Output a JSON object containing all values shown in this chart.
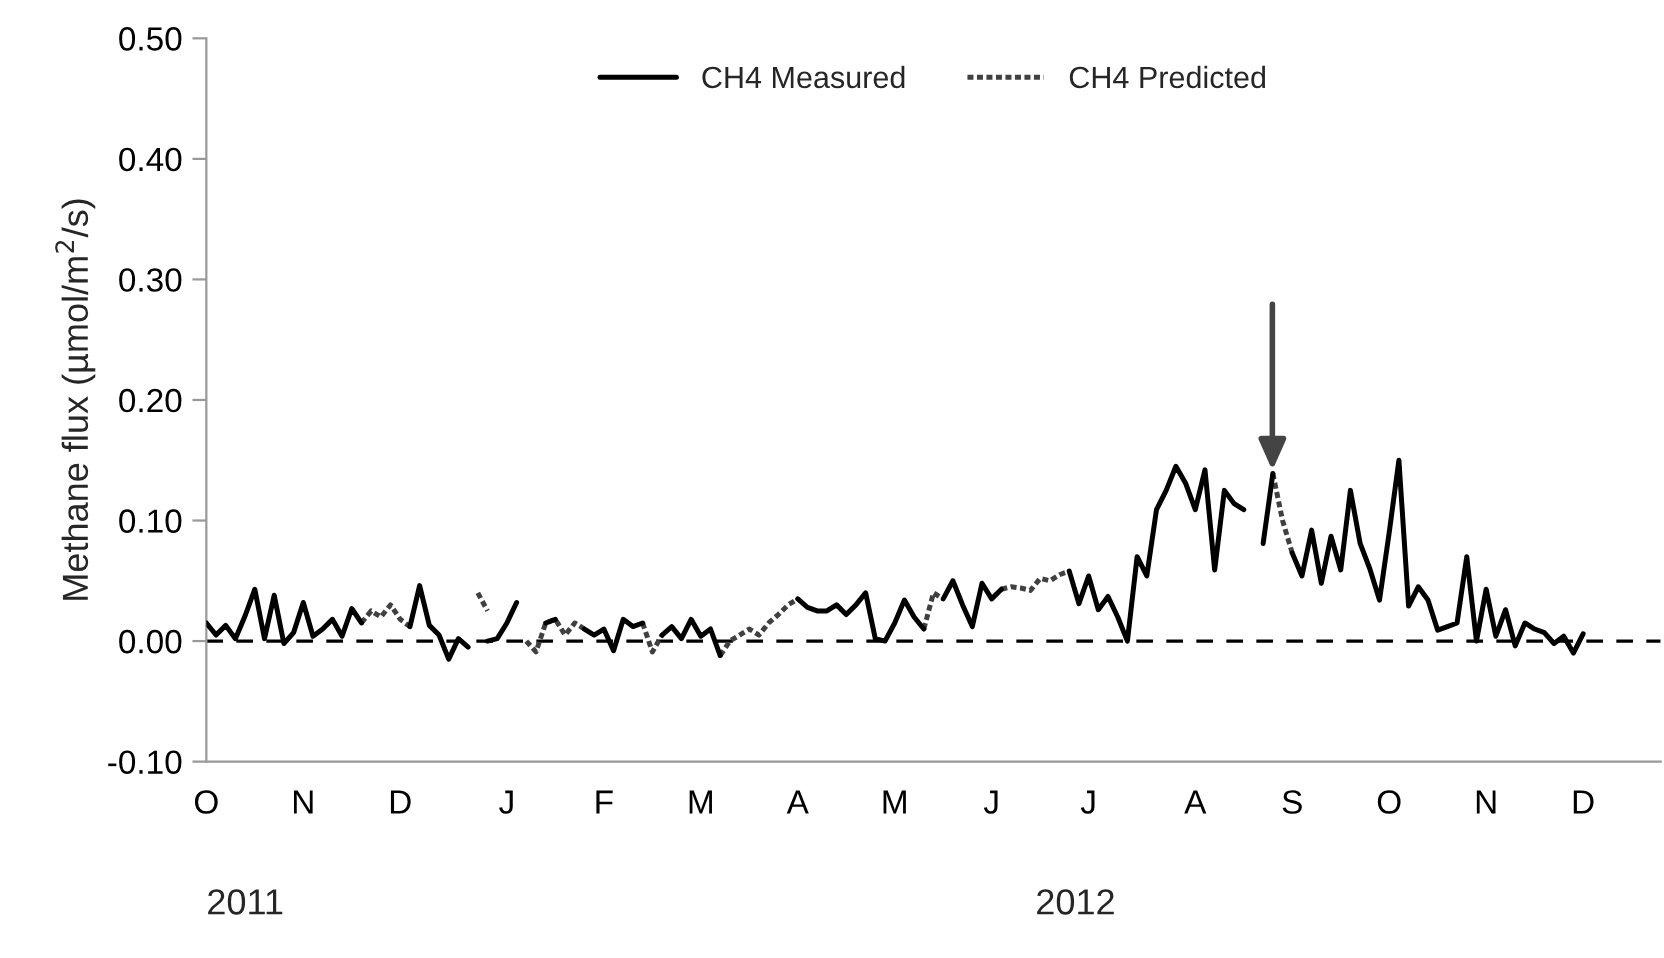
{
  "chart_data": {
    "type": "line",
    "ylabel": "Methane flux (µmol/m$^{2}$/s)",
    "categories": [
      "O",
      null,
      null,
      null,
      null,
      null,
      null,
      null,
      null,
      null,
      "N",
      null,
      null,
      null,
      null,
      null,
      null,
      null,
      null,
      null,
      "D",
      null,
      null,
      null,
      null,
      null,
      null,
      null,
      null,
      null,
      null,
      "J",
      null,
      null,
      null,
      null,
      null,
      null,
      null,
      null,
      null,
      "F",
      null,
      null,
      null,
      null,
      null,
      null,
      null,
      null,
      null,
      "M",
      null,
      null,
      null,
      null,
      null,
      null,
      null,
      null,
      null,
      "A",
      null,
      null,
      null,
      null,
      null,
      null,
      null,
      null,
      null,
      "M",
      null,
      null,
      null,
      null,
      null,
      null,
      null,
      null,
      null,
      "J",
      null,
      null,
      null,
      null,
      null,
      null,
      null,
      null,
      null,
      "J",
      null,
      null,
      null,
      null,
      null,
      null,
      null,
      null,
      null,
      null,
      "A",
      null,
      null,
      null,
      null,
      null,
      null,
      null,
      null,
      null,
      "S",
      null,
      null,
      null,
      null,
      null,
      null,
      null,
      null,
      null,
      "O",
      null,
      null,
      null,
      null,
      null,
      null,
      null,
      null,
      null,
      "N",
      null,
      null,
      null,
      null,
      null,
      null,
      null,
      null,
      null,
      "D",
      null,
      null,
      null,
      null,
      null,
      null,
      null
    ],
    "ylim": [
      -0.1,
      0.5
    ],
    "yticks": [
      {
        "value": -0.1,
        "label": "-0.10"
      },
      {
        "value": 0.0,
        "label": "0.00"
      },
      {
        "value": 0.1,
        "label": "0.10"
      },
      {
        "value": 0.2,
        "label": "0.20"
      },
      {
        "value": 0.3,
        "label": "0.30"
      },
      {
        "value": 0.4,
        "label": "0.40"
      },
      {
        "value": 0.5,
        "label": "0.50"
      }
    ],
    "grid": false,
    "legend": "top",
    "marker": "none",
    "ref_lines": [
      {
        "axis": "y",
        "value": 0,
        "color": "#000000",
        "line_style": "dashed"
      }
    ],
    "annotations": [
      "2011",
      "2012"
    ],
    "series": [
      {
        "name": "CH4 Measured",
        "color": "#000000",
        "line_style": "solid",
        "values": [
          0.015,
          0.005,
          0.013,
          0.002,
          0.021,
          0.043,
          0.002,
          0.038,
          -0.002,
          0.007,
          0.032,
          0.004,
          0.01,
          0.018,
          0.004,
          0.027,
          0.015,
          null,
          null,
          null,
          null,
          0.012,
          0.046,
          0.013,
          0.005,
          -0.015,
          0.002,
          -0.005,
          null,
          0.0,
          0.002,
          0.015,
          0.032,
          null,
          null,
          0.015,
          0.018,
          null,
          null,
          0.01,
          0.005,
          0.01,
          -0.008,
          0.018,
          0.012,
          0.015,
          null,
          0.005,
          0.012,
          0.002,
          0.018,
          0.004,
          0.01,
          -0.012,
          null,
          null,
          null,
          null,
          null,
          null,
          null,
          0.035,
          0.028,
          0.025,
          0.025,
          0.03,
          0.022,
          0.03,
          0.04,
          0.002,
          0.0,
          0.015,
          0.034,
          0.02,
          0.01,
          null,
          0.035,
          0.05,
          0.03,
          0.012,
          0.048,
          0.035,
          0.043,
          null,
          null,
          null,
          null,
          null,
          null,
          0.058,
          0.031,
          0.054,
          0.026,
          0.037,
          0.02,
          0.0,
          0.07,
          0.054,
          0.109,
          0.125,
          0.145,
          0.131,
          0.109,
          0.142,
          0.059,
          0.125,
          0.114,
          0.109,
          null,
          0.081,
          0.139,
          null,
          0.073,
          0.054,
          0.092,
          0.048,
          0.087,
          0.059,
          0.125,
          0.081,
          0.06,
          0.034,
          0.09,
          0.15,
          0.029,
          0.045,
          0.034,
          0.009,
          0.012,
          0.015,
          0.07,
          0.0,
          0.043,
          0.004,
          0.026,
          -0.004,
          0.015,
          0.01,
          0.007,
          -0.002,
          0.004,
          -0.01,
          0.006,
          null,
          null,
          null,
          null,
          null,
          null,
          null
        ]
      },
      {
        "name": "CH4 Predicted",
        "color": "#404040",
        "line_style": "dotted",
        "values": [
          null,
          null,
          null,
          null,
          null,
          null,
          null,
          null,
          null,
          null,
          null,
          null,
          null,
          null,
          null,
          null,
          0.015,
          0.025,
          0.02,
          0.03,
          0.018,
          0.012,
          null,
          null,
          null,
          null,
          null,
          null,
          0.04,
          0.025,
          null,
          null,
          null,
          0.0,
          -0.009,
          0.015,
          0.018,
          0.005,
          0.015,
          0.01,
          null,
          null,
          null,
          null,
          null,
          0.015,
          -0.009,
          0.005,
          null,
          null,
          null,
          null,
          null,
          -0.012,
          0.0,
          0.005,
          0.01,
          0.005,
          0.015,
          0.022,
          0.03,
          0.035,
          null,
          null,
          null,
          null,
          null,
          null,
          null,
          null,
          null,
          null,
          null,
          null,
          0.01,
          0.04,
          0.035,
          null,
          null,
          null,
          null,
          null,
          0.043,
          0.045,
          0.044,
          0.042,
          0.052,
          0.05,
          0.055,
          0.058,
          null,
          null,
          null,
          null,
          null,
          null,
          null,
          null,
          null,
          null,
          null,
          null,
          null,
          null,
          null,
          null,
          null,
          null,
          null,
          null,
          0.139,
          0.1,
          0.073,
          null,
          null,
          null,
          null,
          null,
          null,
          null,
          null,
          null,
          null,
          null,
          null,
          null,
          null,
          null,
          null,
          null,
          null,
          null,
          null,
          null,
          null,
          null,
          null,
          null,
          null,
          null,
          null,
          null,
          null,
          null,
          null,
          null,
          null,
          null,
          null,
          null
        ]
      }
    ]
  }
}
